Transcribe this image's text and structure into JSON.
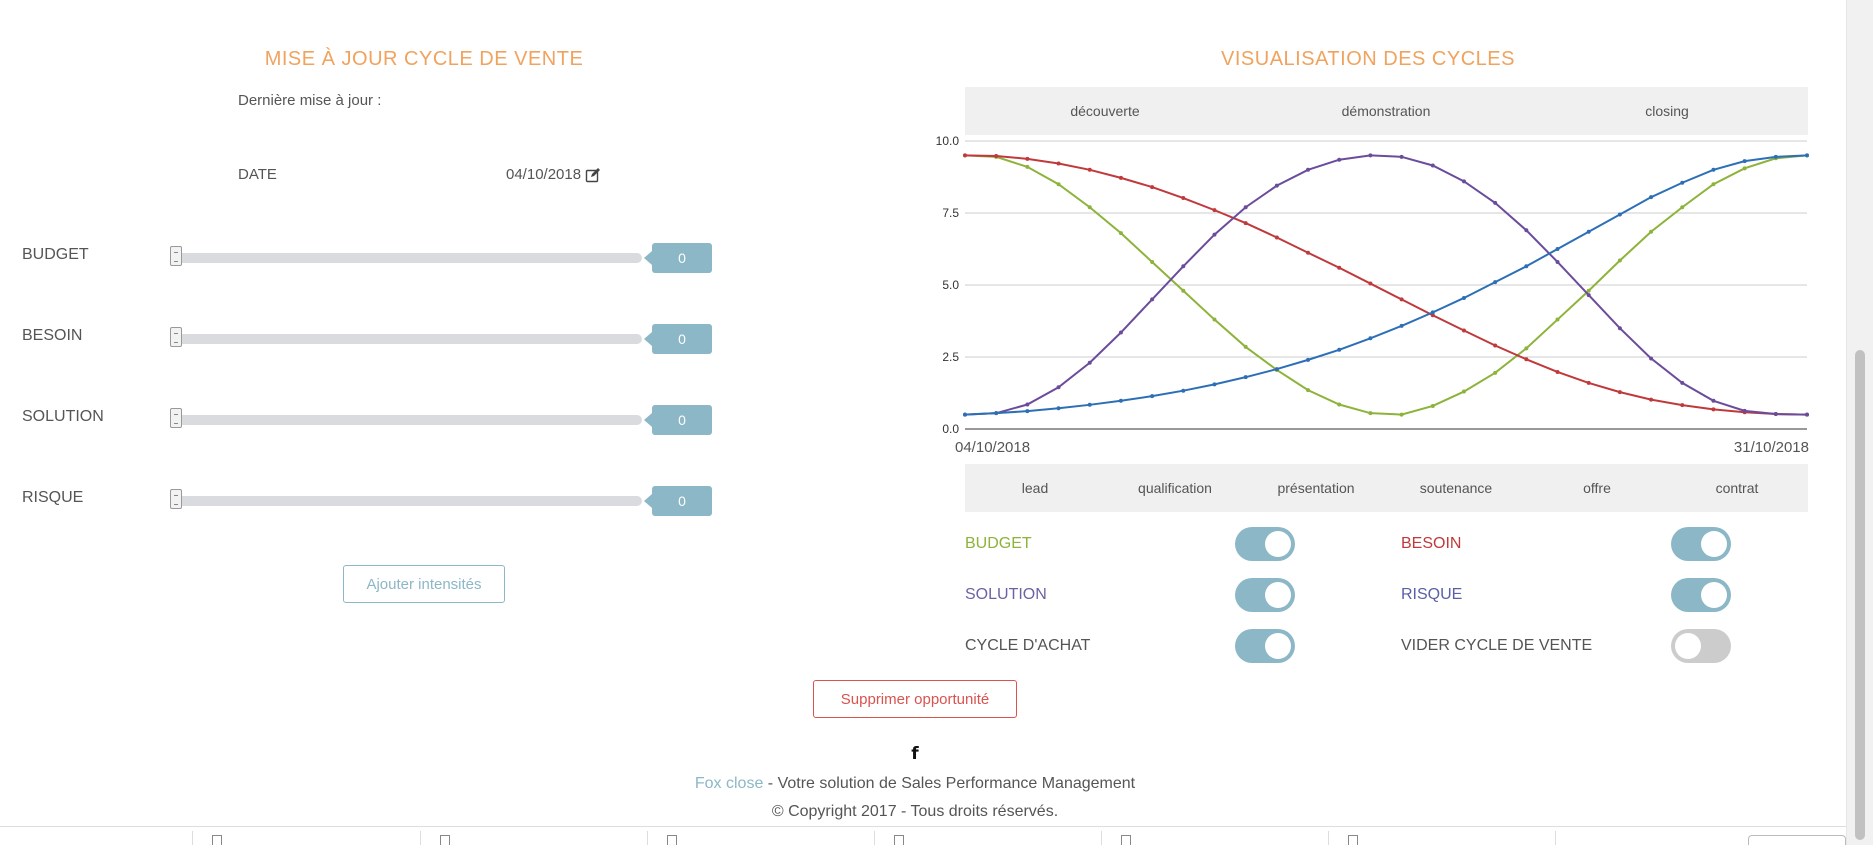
{
  "update_panel": {
    "title": "MISE À JOUR CYCLE DE VENTE",
    "last_update_label": "Dernière mise à jour :",
    "date_label": "DATE",
    "date_value": "04/10/2018",
    "date_edit_icon": "edit-icon",
    "sliders": [
      {
        "label": "BUDGET",
        "value": "0"
      },
      {
        "label": "BESOIN",
        "value": "0"
      },
      {
        "label": "SOLUTION",
        "value": "0"
      },
      {
        "label": "RISQUE",
        "value": "0"
      }
    ],
    "add_button_label": "Ajouter intensités"
  },
  "cycles_panel": {
    "title": "VISUALISATION DES CYCLES",
    "top_phases": [
      "découverte",
      "démonstration",
      "closing"
    ],
    "bottom_phases": [
      "lead",
      "qualification",
      "présentation",
      "soutenance",
      "offre",
      "contrat"
    ],
    "toggles": [
      {
        "label": "BUDGET",
        "color": "#8db33a",
        "on": true
      },
      {
        "label": "BESOIN",
        "color": "#c0393b",
        "on": true
      },
      {
        "label": "SOLUTION",
        "color": "#6b63a3",
        "on": true
      },
      {
        "label": "RISQUE",
        "color": "#5a5fa8",
        "on": true
      },
      {
        "label": "CYCLE D'ACHAT",
        "color": "#555555",
        "on": true
      },
      {
        "label": "VIDER CYCLE DE VENTE",
        "color": "#555555",
        "on": false
      }
    ]
  },
  "chart_data": {
    "type": "line",
    "x_start_label": "04/10/2018",
    "x_end_label": "31/10/2018",
    "x": [
      0,
      1,
      2,
      3,
      4,
      5,
      6,
      7,
      8,
      9,
      10,
      11,
      12,
      13,
      14,
      15,
      16,
      17,
      18,
      19,
      20,
      21,
      22,
      23,
      24,
      25,
      26,
      27
    ],
    "ylim": [
      0,
      10
    ],
    "yticks": [
      "0.0",
      "2.5",
      "5.0",
      "7.5",
      "10.0"
    ],
    "grid": true,
    "series": [
      {
        "color": "#8db33a",
        "values": [
          9.5,
          9.45,
          9.1,
          8.5,
          7.7,
          6.8,
          5.8,
          4.8,
          3.8,
          2.85,
          2.05,
          1.35,
          0.85,
          0.55,
          0.5,
          0.8,
          1.3,
          1.95,
          2.8,
          3.8,
          4.8,
          5.85,
          6.85,
          7.7,
          8.5,
          9.05,
          9.4,
          9.5
        ]
      },
      {
        "color": "#c0393b",
        "values": [
          9.5,
          9.48,
          9.38,
          9.22,
          9.0,
          8.72,
          8.4,
          8.02,
          7.6,
          7.15,
          6.65,
          6.12,
          5.6,
          5.05,
          4.5,
          3.95,
          3.42,
          2.9,
          2.42,
          1.98,
          1.6,
          1.28,
          1.02,
          0.83,
          0.68,
          0.58,
          0.52,
          0.5
        ]
      },
      {
        "color": "#6b4c9a",
        "values": [
          0.5,
          0.55,
          0.85,
          1.45,
          2.3,
          3.35,
          4.5,
          5.65,
          6.75,
          7.7,
          8.45,
          9.0,
          9.35,
          9.5,
          9.45,
          9.15,
          8.6,
          7.85,
          6.9,
          5.8,
          4.65,
          3.5,
          2.45,
          1.6,
          0.98,
          0.63,
          0.52,
          0.5
        ]
      },
      {
        "color": "#2c6fb7",
        "values": [
          0.5,
          0.55,
          0.62,
          0.72,
          0.84,
          0.98,
          1.14,
          1.33,
          1.55,
          1.8,
          2.08,
          2.4,
          2.75,
          3.15,
          3.58,
          4.05,
          4.55,
          5.1,
          5.65,
          6.25,
          6.85,
          7.45,
          8.05,
          8.55,
          9.0,
          9.3,
          9.45,
          9.5
        ]
      }
    ]
  },
  "actions": {
    "delete_button_label": "Supprimer opportunité"
  },
  "footer": {
    "social_icon": "facebook-icon",
    "social_glyph": "f",
    "brand": "Fox close",
    "tagline": " - Votre solution de Sales Performance Management",
    "copyright": "© Copyright 2017 - Tous droits réservés."
  }
}
